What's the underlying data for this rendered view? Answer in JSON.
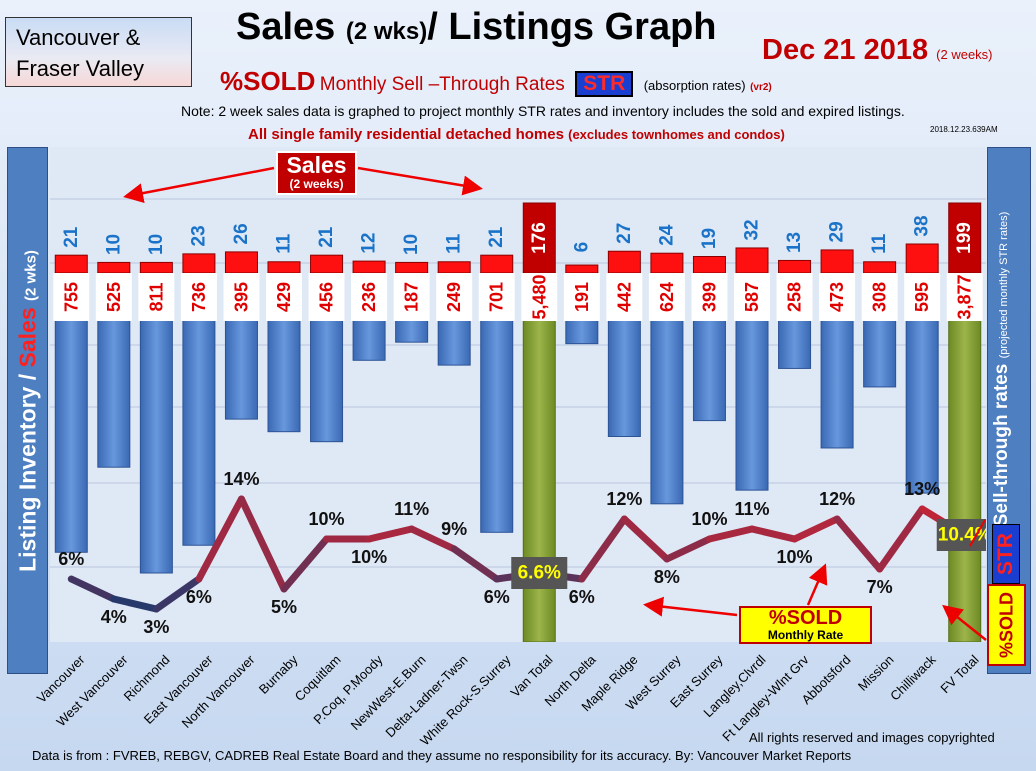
{
  "header": {
    "region_line1": "Vancouver &",
    "region_line2": "Fraser Valley",
    "title_main": "Sales",
    "title_small": "(2 wks)",
    "title_rest": "/ Listings Graph",
    "date": "Dec 21 2018",
    "date_note": "(2 weeks)",
    "subtitle_pct": "%SOLD",
    "subtitle_mid": "Monthly Sell –Through Rates",
    "subtitle_badge": "STR",
    "subtitle_after": "(absorption rates)",
    "subtitle_ver": "(vr2)",
    "note": "Note: 2 week sales data is graphed to project monthly STR rates and inventory includes the sold and expired listings.",
    "scope_main": "All single family residential detached homes",
    "scope_small": "(excludes townhomes and condos)",
    "stamp": "2018.12.23.639AM"
  },
  "left_axis": {
    "part1": "Listing Inventory /",
    "part2": "Sales",
    "part3": "(2 wks)"
  },
  "right_axis": {
    "main": "Sell-through rates",
    "small": "(projected monthly STR rates)",
    "str_badge": "STR",
    "sold_badge": "%SOLD"
  },
  "callouts": {
    "sales_main": "Sales",
    "sales_sub": "(2 weeks)",
    "sold_main": "%SOLD",
    "sold_sub": "Monthly Rate"
  },
  "footer": {
    "source": "Data is from : FVREB, REBGV, CADREB Real Estate Board and they assume no responsibility for its accuracy. By: Vancouver Market Reports",
    "rights": "All rights reserved and  images copyrighted"
  },
  "colors": {
    "inventory_bar": "#4a7fcf",
    "sales_bar": "#ff0000",
    "total_inventory": "#7f9a2c",
    "total_sales": "#c00000",
    "line_low": "#1e3a6e",
    "line_high": "#e8202a"
  },
  "chart_data": {
    "type": "bar",
    "categories": [
      "Vancouver",
      "West Vancouver",
      "Richmond",
      "East Vancouver",
      "North Vancouver",
      "Burnaby",
      "Coquitlam",
      "P.Coq, P.Moody",
      "NewWest-E.Burn",
      "Delta-Ladner-Twsn",
      "White Rock-S.Surrey",
      "Van Total",
      "North Delta",
      "Maple Ridge",
      "West Surrey",
      "East Surrey",
      "Langley,Clvrdl",
      "Ft Langley-Wlnt Grv",
      "Abbotsford",
      "Mission",
      "Chilliwack",
      "FV Total"
    ],
    "series": [
      {
        "name": "Sales",
        "values": [
          21,
          10,
          10,
          23,
          26,
          11,
          21,
          12,
          10,
          11,
          21,
          176,
          6,
          27,
          24,
          19,
          32,
          13,
          29,
          11,
          38,
          199
        ]
      },
      {
        "name": "Listing Inventory",
        "values": [
          755,
          525,
          811,
          736,
          395,
          429,
          456,
          236,
          187,
          249,
          701,
          5480,
          191,
          442,
          624,
          399,
          587,
          258,
          473,
          308,
          595,
          3877
        ]
      },
      {
        "name": "%SOLD",
        "values": [
          6,
          4,
          3,
          6,
          14,
          5,
          10,
          10,
          11,
          9,
          6,
          6.6,
          6,
          12,
          8,
          10,
          11,
          10,
          12,
          7,
          13,
          10.4
        ]
      }
    ],
    "inventory_labels": [
      "755",
      "525",
      "811",
      "736",
      "395",
      "429",
      "456",
      "236",
      "187",
      "249",
      "701",
      "5,480",
      "191",
      "442",
      "624",
      "399",
      "587",
      "258",
      "473",
      "308",
      "595",
      "3,877"
    ],
    "pct_labels": [
      "6%",
      "4%",
      "3%",
      "6%",
      "14%",
      "5%",
      "10%",
      "10%",
      "11%",
      "9%",
      "6%",
      "6.6%",
      "6%",
      "12%",
      "8%",
      "10%",
      "11%",
      "10%",
      "12%",
      "7%",
      "13%",
      "10.4%"
    ],
    "totals": [
      "Van Total",
      "FV Total"
    ]
  }
}
